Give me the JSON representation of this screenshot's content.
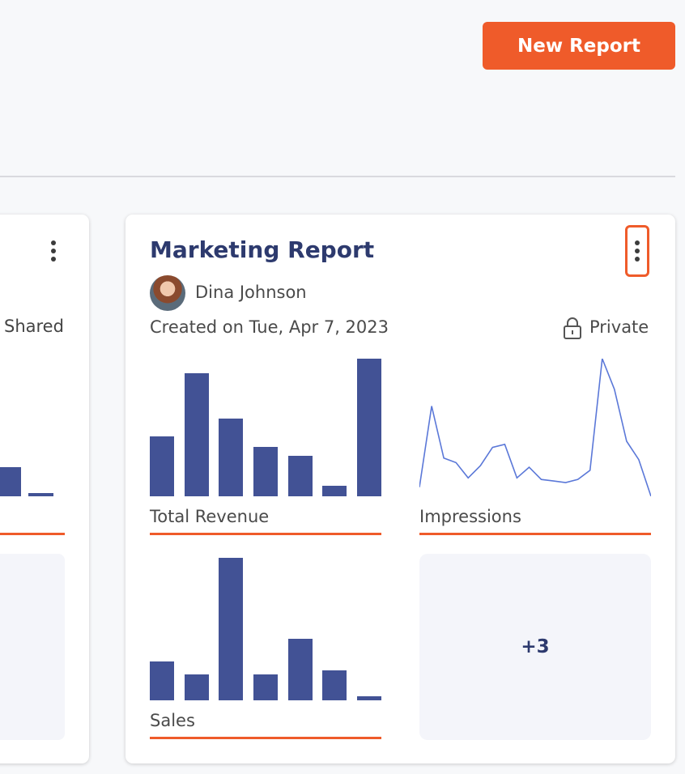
{
  "header": {
    "new_report_label": "New Report"
  },
  "left_card": {
    "privacy_label": "Shared",
    "revenue_values": [
      12,
      2
    ]
  },
  "report_card": {
    "title": "Marketing Report",
    "author": "Dina Johnson",
    "created": "Created on Tue, Apr 7, 2023",
    "privacy": "Private",
    "more_label": "+3"
  },
  "colors": {
    "accent": "#ef5b2a",
    "bar": "#425295",
    "line": "#5b78d8",
    "title": "#2d3a6e"
  },
  "chart_data": [
    {
      "type": "bar",
      "title": "Total Revenue",
      "categories": [
        "1",
        "2",
        "3",
        "4",
        "5",
        "6",
        "7"
      ],
      "values": [
        40,
        82,
        52,
        33,
        27,
        7,
        92
      ],
      "ylim": [
        0,
        92
      ]
    },
    {
      "type": "line",
      "title": "Impressions",
      "x": [
        0,
        1,
        2,
        3,
        4,
        5,
        6,
        7,
        8,
        9,
        10,
        11,
        12,
        13,
        14,
        15,
        16,
        17,
        18,
        19
      ],
      "values": [
        6,
        59,
        25,
        22,
        12,
        20,
        32,
        34,
        12,
        19,
        11,
        10,
        9,
        11,
        17,
        90,
        70,
        36,
        24,
        0
      ],
      "ylim": [
        0,
        90
      ]
    },
    {
      "type": "bar",
      "title": "Sales",
      "categories": [
        "1",
        "2",
        "3",
        "4",
        "5",
        "6",
        "7"
      ],
      "values": [
        27,
        18,
        100,
        18,
        43,
        21,
        3
      ],
      "ylim": [
        0,
        100
      ]
    }
  ]
}
